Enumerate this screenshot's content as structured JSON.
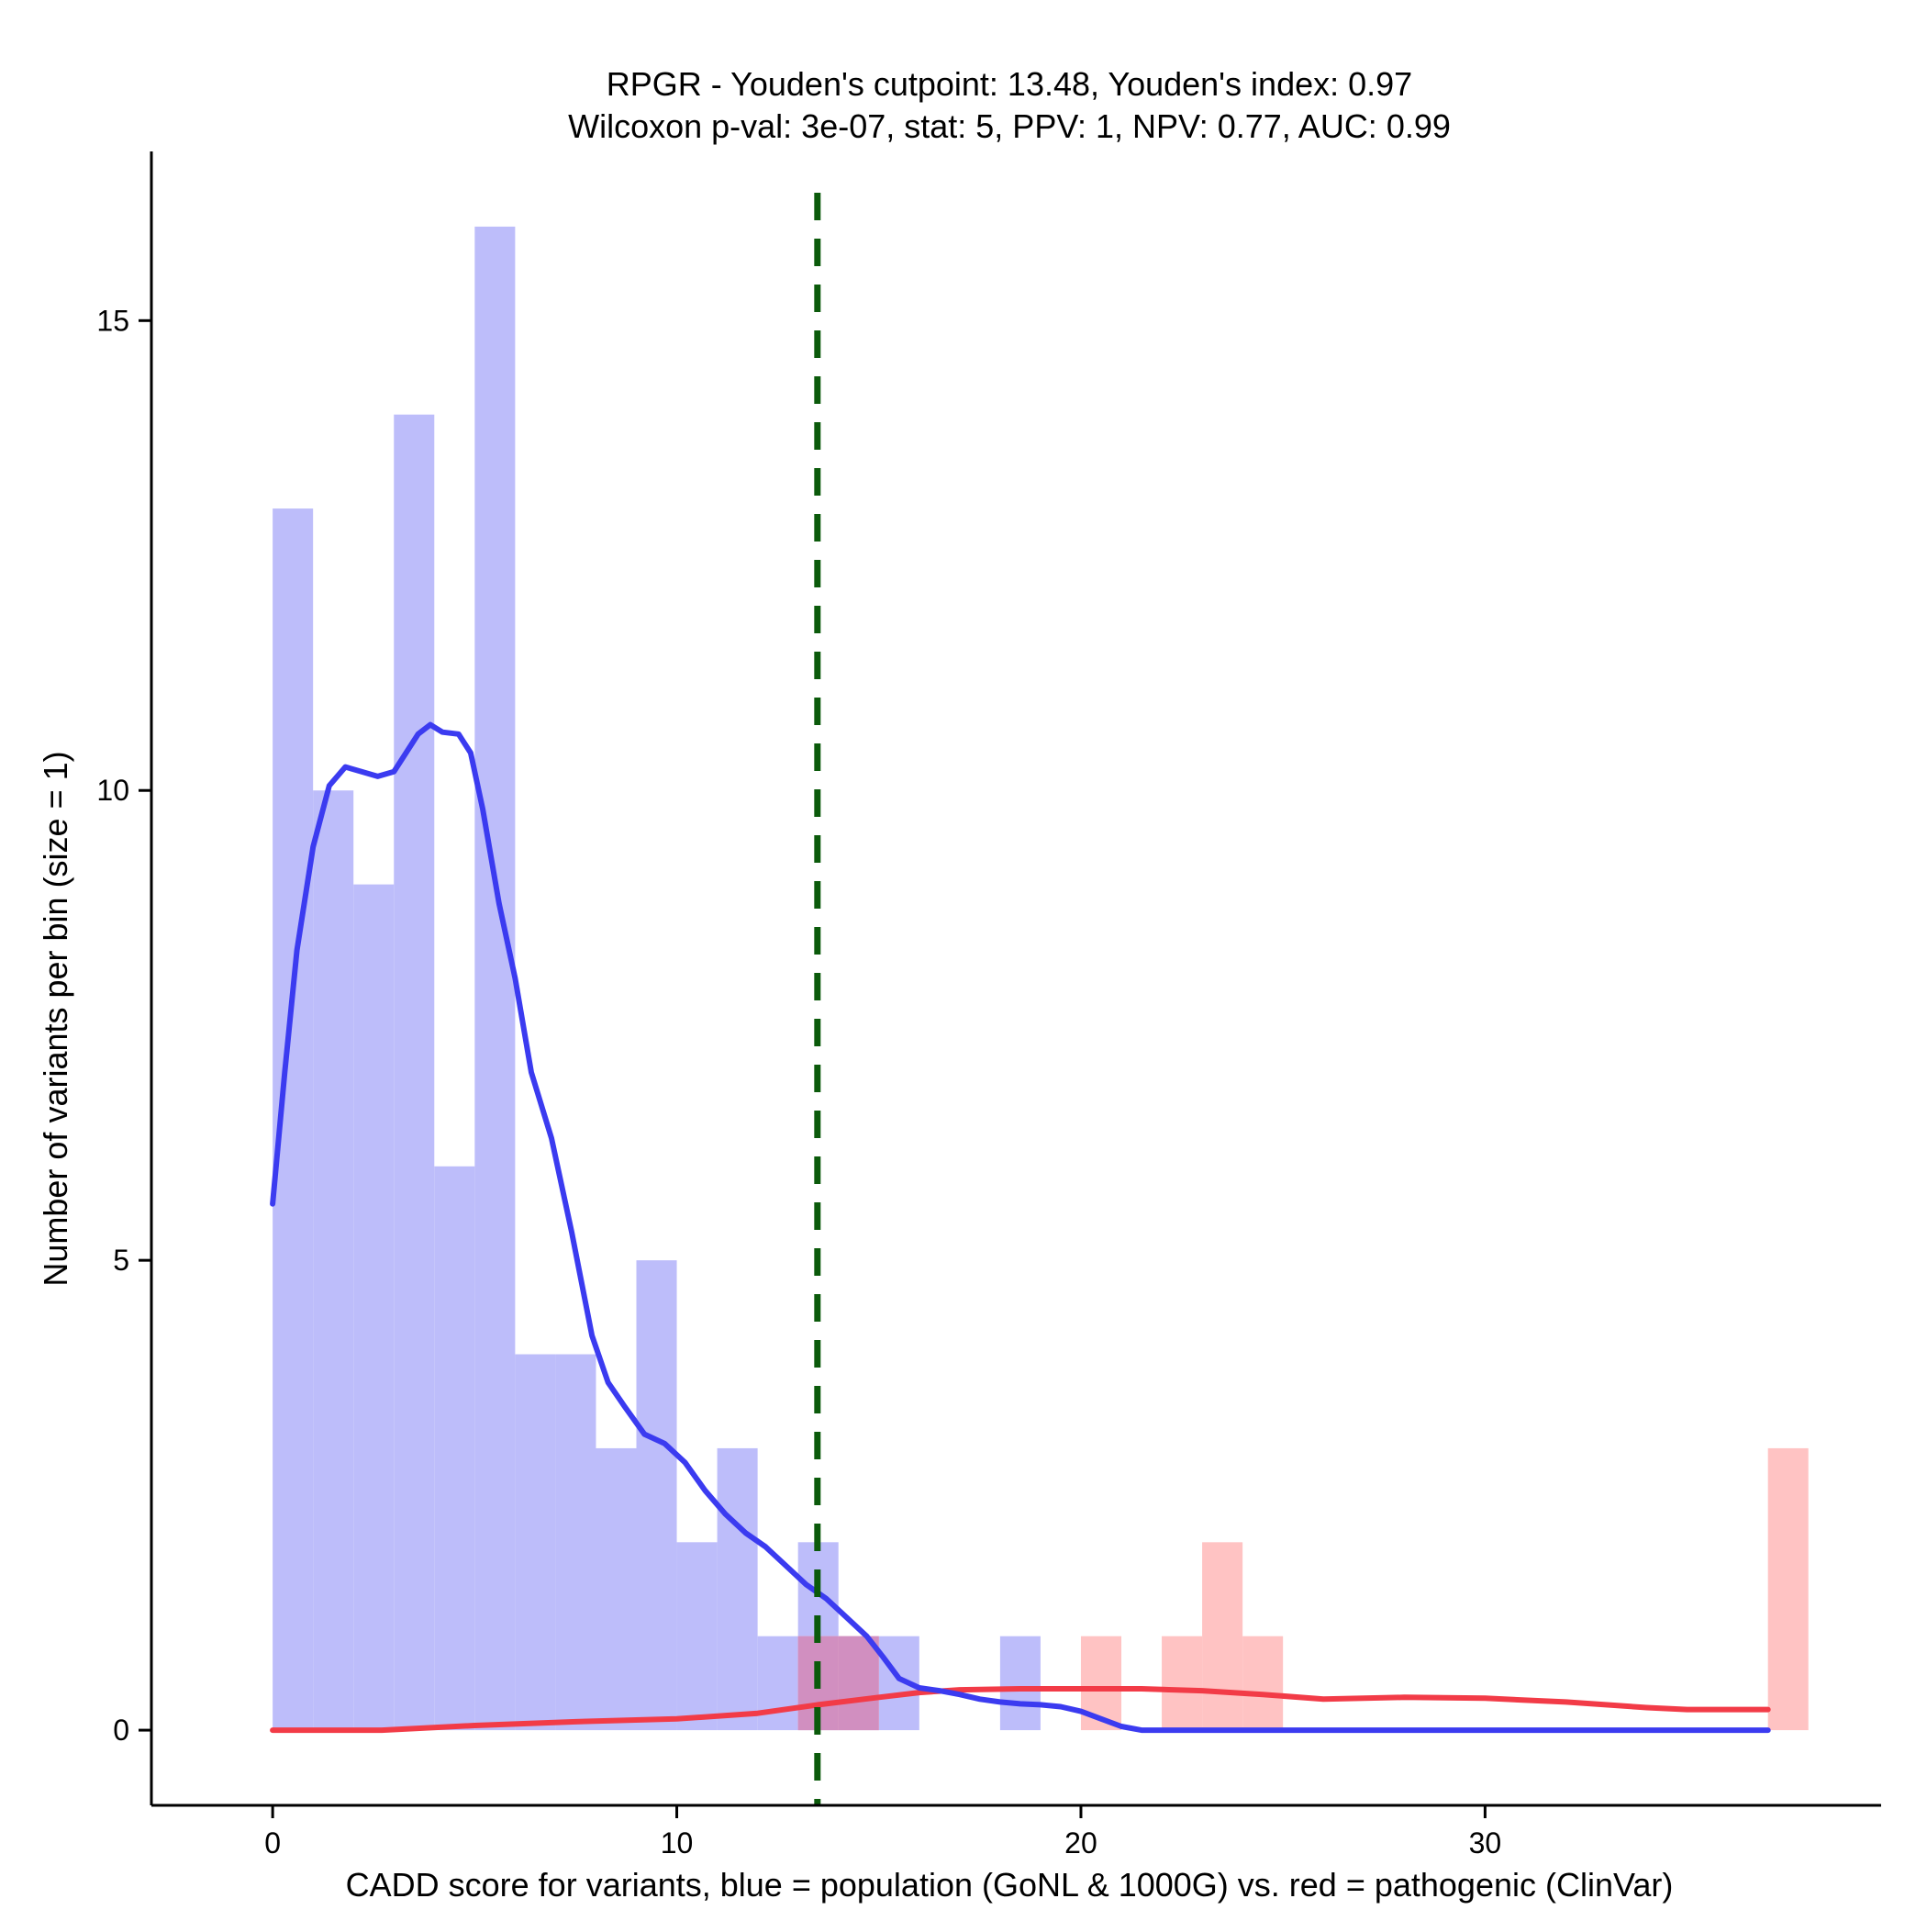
{
  "chart_data": {
    "type": "bar",
    "title_lines": [
      "RPGR - Youden's cutpoint: 13.48, Youden's index: 0.97",
      "Wilcoxon p-val: 3e-07, stat: 5, PPV: 1, NPV: 0.77, AUC: 0.99"
    ],
    "xlabel": "CADD score for variants, blue = population (GoNL & 1000G) vs. red = pathogenic (ClinVar)",
    "ylabel": "Number of variants per bin (size = 1)",
    "xlim": [
      -3,
      39.8
    ],
    "ylim": [
      -0.8,
      16.8
    ],
    "xticks": [
      0,
      10,
      20,
      30
    ],
    "yticks": [
      0,
      5,
      10,
      15
    ],
    "bin_width": 1,
    "cutpoint": 13.48,
    "colors": {
      "population_bar": "#bdbdfa",
      "pathogenic_bar": "#ffbdbd",
      "population_line": "#3b3bf0",
      "pathogenic_line": "#f23b47",
      "cutpoint_line": "#0b5a0b"
    },
    "series": [
      {
        "name": "population (GoNL & 1000G)",
        "bins": [
          {
            "start": 0,
            "count": 13
          },
          {
            "start": 1,
            "count": 10
          },
          {
            "start": 2,
            "count": 9
          },
          {
            "start": 3,
            "count": 14
          },
          {
            "start": 4,
            "count": 6
          },
          {
            "start": 5,
            "count": 16
          },
          {
            "start": 6,
            "count": 4
          },
          {
            "start": 7,
            "count": 4
          },
          {
            "start": 8,
            "count": 3
          },
          {
            "start": 9,
            "count": 5
          },
          {
            "start": 10,
            "count": 2
          },
          {
            "start": 11,
            "count": 3
          },
          {
            "start": 12,
            "count": 1
          },
          {
            "start": 13,
            "count": 2
          },
          {
            "start": 14,
            "count": 1
          },
          {
            "start": 15,
            "count": 1
          },
          {
            "start": 18,
            "count": 1
          }
        ],
        "density": [
          [
            0,
            5.6
          ],
          [
            0.3,
            7.0
          ],
          [
            0.6,
            8.3
          ],
          [
            1.0,
            9.4
          ],
          [
            1.4,
            10.05
          ],
          [
            1.8,
            10.25
          ],
          [
            2.2,
            10.2
          ],
          [
            2.6,
            10.15
          ],
          [
            3.0,
            10.2
          ],
          [
            3.3,
            10.4
          ],
          [
            3.6,
            10.6
          ],
          [
            3.9,
            10.7
          ],
          [
            4.2,
            10.62
          ],
          [
            4.6,
            10.6
          ],
          [
            4.9,
            10.4
          ],
          [
            5.2,
            9.8
          ],
          [
            5.6,
            8.8
          ],
          [
            6.0,
            8.0
          ],
          [
            6.4,
            7.0
          ],
          [
            6.9,
            6.3
          ],
          [
            7.4,
            5.3
          ],
          [
            7.9,
            4.2
          ],
          [
            8.3,
            3.7
          ],
          [
            8.7,
            3.45
          ],
          [
            9.2,
            3.15
          ],
          [
            9.7,
            3.05
          ],
          [
            10.2,
            2.85
          ],
          [
            10.7,
            2.55
          ],
          [
            11.2,
            2.3
          ],
          [
            11.7,
            2.1
          ],
          [
            12.2,
            1.95
          ],
          [
            12.7,
            1.75
          ],
          [
            13.2,
            1.55
          ],
          [
            13.7,
            1.4
          ],
          [
            14.2,
            1.2
          ],
          [
            14.7,
            1.0
          ],
          [
            15.1,
            0.78
          ],
          [
            15.5,
            0.55
          ],
          [
            16.0,
            0.45
          ],
          [
            16.5,
            0.42
          ],
          [
            17.0,
            0.38
          ],
          [
            17.5,
            0.33
          ],
          [
            18.0,
            0.3
          ],
          [
            18.5,
            0.28
          ],
          [
            19.0,
            0.27
          ],
          [
            19.5,
            0.25
          ],
          [
            20.0,
            0.2
          ],
          [
            20.5,
            0.12
          ],
          [
            21.0,
            0.04
          ],
          [
            21.5,
            0.0
          ],
          [
            25,
            0.0
          ],
          [
            30,
            0.0
          ],
          [
            35,
            0.0
          ],
          [
            37,
            0.0
          ]
        ]
      },
      {
        "name": "pathogenic (ClinVar)",
        "bins": [
          {
            "start": 13,
            "count": 1
          },
          {
            "start": 14,
            "count": 1
          },
          {
            "start": 20,
            "count": 1
          },
          {
            "start": 22,
            "count": 1
          },
          {
            "start": 23,
            "count": 2
          },
          {
            "start": 24,
            "count": 1
          },
          {
            "start": 37,
            "count": 3
          }
        ],
        "density": [
          [
            0,
            0.0
          ],
          [
            2.7,
            0.0
          ],
          [
            5,
            0.05
          ],
          [
            7.5,
            0.09
          ],
          [
            10,
            0.12
          ],
          [
            12,
            0.18
          ],
          [
            13.5,
            0.27
          ],
          [
            15,
            0.35
          ],
          [
            16,
            0.4
          ],
          [
            17,
            0.43
          ],
          [
            18.5,
            0.44
          ],
          [
            20,
            0.44
          ],
          [
            21.5,
            0.44
          ],
          [
            23,
            0.42
          ],
          [
            24.5,
            0.38
          ],
          [
            26,
            0.33
          ],
          [
            28,
            0.35
          ],
          [
            30,
            0.34
          ],
          [
            32,
            0.3
          ],
          [
            34,
            0.24
          ],
          [
            35,
            0.22
          ],
          [
            37,
            0.22
          ]
        ]
      }
    ]
  }
}
